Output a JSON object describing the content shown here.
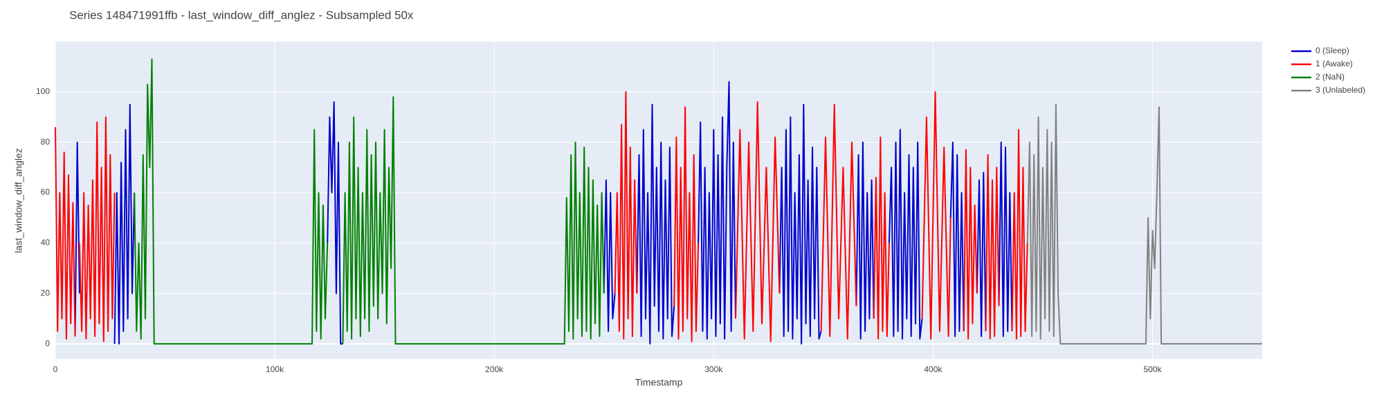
{
  "chart_data": {
    "type": "line",
    "title": "Series 148471991ffb - last_window_diff_anglez - Subsampled 50x",
    "x_label": "Timestamp",
    "y_label": "last_window_diff_anglez",
    "xlim": [
      0,
      550000
    ],
    "ylim": [
      -6,
      120
    ],
    "xticks": [
      0,
      {
        "value": 100000,
        "label": "100k"
      },
      {
        "value": 200000,
        "label": "200k"
      },
      {
        "value": 300000,
        "label": "300k"
      },
      {
        "value": 400000,
        "label": "400k"
      },
      {
        "value": 500000,
        "label": "500k"
      }
    ],
    "yticks": [
      0,
      20,
      40,
      60,
      80,
      100
    ],
    "grid": true,
    "legend": "right",
    "series": [
      {
        "name": "0 (Sleep)",
        "color": "#0000cc",
        "x": [
          9000,
          10000,
          11000,
          null,
          27000,
          28000,
          29000,
          30000,
          31000,
          32000,
          33000,
          34000,
          35000,
          36000,
          null,
          124000,
          125000,
          126000,
          127000,
          128000,
          129000,
          130000,
          131000,
          null,
          250000,
          251000,
          252000,
          253000,
          254000,
          255000,
          null,
          265000,
          266000,
          267000,
          268000,
          269000,
          270000,
          271000,
          272000,
          273000,
          274000,
          275000,
          276000,
          277000,
          278000,
          279000,
          280000,
          281000,
          282000,
          null,
          293000,
          294000,
          295000,
          296000,
          297000,
          298000,
          299000,
          300000,
          301000,
          302000,
          303000,
          304000,
          305000,
          306000,
          307000,
          308000,
          309000,
          310000,
          null,
          330000,
          331000,
          332000,
          333000,
          334000,
          335000,
          336000,
          337000,
          338000,
          339000,
          340000,
          341000,
          342000,
          343000,
          344000,
          345000,
          346000,
          347000,
          348000,
          349000,
          null,
          365000,
          366000,
          367000,
          368000,
          369000,
          370000,
          371000,
          372000,
          373000,
          null,
          380000,
          381000,
          382000,
          383000,
          384000,
          385000,
          386000,
          387000,
          388000,
          389000,
          390000,
          391000,
          392000,
          393000,
          394000,
          395000,
          null,
          408000,
          409000,
          410000,
          411000,
          412000,
          413000,
          414000,
          null,
          420000,
          421000,
          422000,
          423000,
          424000,
          null,
          430000,
          431000,
          432000,
          433000,
          434000,
          435000,
          436000
        ],
        "values": [
          3,
          80,
          20,
          null,
          0,
          60,
          0,
          72,
          5,
          85,
          10,
          95,
          20,
          60,
          null,
          40,
          90,
          60,
          96,
          20,
          80,
          0,
          0,
          null,
          20,
          65,
          5,
          60,
          10,
          20,
          null,
          20,
          75,
          3,
          85,
          10,
          60,
          0,
          95,
          15,
          70,
          5,
          80,
          2,
          65,
          10,
          78,
          3,
          15,
          null,
          40,
          88,
          5,
          70,
          2,
          60,
          10,
          85,
          3,
          75,
          8,
          90,
          2,
          70,
          104,
          5,
          80,
          10,
          null,
          20,
          70,
          3,
          85,
          5,
          90,
          2,
          60,
          10,
          75,
          0,
          95,
          8,
          65,
          3,
          78,
          10,
          70,
          2,
          5,
          null,
          15,
          75,
          2,
          80,
          5,
          60,
          10,
          65,
          10,
          null,
          40,
          70,
          3,
          80,
          5,
          85,
          2,
          60,
          10,
          75,
          3,
          70,
          8,
          80,
          2,
          10,
          null,
          50,
          80,
          3,
          75,
          5,
          60,
          5,
          null,
          20,
          65,
          3,
          68,
          5,
          null,
          15,
          80,
          3,
          78,
          5,
          60,
          5
        ]
      },
      {
        "name": "1 (Awake)",
        "color": "#ff0000",
        "x": [
          0,
          1000,
          2000,
          3000,
          4000,
          5000,
          6000,
          7000,
          8000,
          9000,
          null,
          11000,
          12000,
          13000,
          14000,
          15000,
          16000,
          17000,
          18000,
          19000,
          20000,
          21000,
          22000,
          23000,
          24000,
          25000,
          26000,
          27000,
          null,
          255000,
          256000,
          257000,
          258000,
          259000,
          260000,
          261000,
          262000,
          263000,
          264000,
          265000,
          null,
          282000,
          283000,
          284000,
          285000,
          286000,
          287000,
          288000,
          289000,
          290000,
          291000,
          292000,
          293000,
          null,
          310000,
          312000,
          314000,
          316000,
          318000,
          320000,
          322000,
          324000,
          326000,
          328000,
          330000,
          null,
          349000,
          351000,
          353000,
          355000,
          357000,
          359000,
          361000,
          363000,
          365000,
          null,
          373000,
          374000,
          375000,
          376000,
          377000,
          378000,
          379000,
          380000,
          null,
          395000,
          397000,
          399000,
          401000,
          403000,
          405000,
          407000,
          408000,
          null,
          414000,
          415000,
          416000,
          417000,
          418000,
          419000,
          420000,
          null,
          424000,
          425000,
          426000,
          427000,
          428000,
          429000,
          430000,
          null,
          436000,
          437000,
          438000,
          439000,
          440000,
          441000,
          442000,
          443000
        ],
        "values": [
          86,
          5,
          60,
          10,
          76,
          2,
          67,
          8,
          56,
          3,
          null,
          40,
          5,
          60,
          2,
          55,
          10,
          65,
          3,
          88,
          8,
          70,
          1,
          90,
          5,
          75,
          10,
          60,
          null,
          20,
          60,
          5,
          87,
          2,
          100,
          10,
          78,
          3,
          65,
          20,
          null,
          15,
          82,
          2,
          70,
          5,
          94,
          10,
          60,
          1,
          75,
          5,
          40,
          null,
          10,
          85,
          2,
          80,
          5,
          96,
          8,
          70,
          1,
          82,
          20,
          null,
          5,
          82,
          3,
          95,
          10,
          70,
          2,
          80,
          15,
          null,
          10,
          66,
          2,
          82,
          5,
          60,
          3,
          40,
          null,
          10,
          90,
          2,
          100,
          5,
          78,
          3,
          50,
          null,
          5,
          77,
          2,
          70,
          8,
          55,
          20,
          null,
          5,
          75,
          2,
          65,
          3,
          70,
          15,
          null,
          5,
          60,
          2,
          85,
          3,
          70,
          5,
          40
        ]
      },
      {
        "name": "2 (NaN)",
        "color": "#008000",
        "x": [
          36000,
          37000,
          38000,
          39000,
          40000,
          41000,
          42000,
          43000,
          44000,
          45000,
          117000,
          118000,
          119000,
          120000,
          121000,
          122000,
          123000,
          124000,
          null,
          131000,
          132000,
          133000,
          134000,
          135000,
          136000,
          137000,
          138000,
          139000,
          140000,
          141000,
          142000,
          143000,
          144000,
          145000,
          146000,
          147000,
          148000,
          149000,
          150000,
          151000,
          152000,
          153000,
          154000,
          155000,
          232000,
          233000,
          234000,
          235000,
          236000,
          237000,
          238000,
          239000,
          240000,
          241000,
          242000,
          243000,
          244000,
          245000,
          246000,
          247000,
          248000,
          249000,
          250000
        ],
        "values": [
          60,
          5,
          40,
          2,
          75,
          10,
          103,
          70,
          113,
          0,
          0,
          85,
          5,
          60,
          2,
          55,
          10,
          40,
          null,
          0,
          60,
          5,
          80,
          2,
          90,
          10,
          70,
          3,
          60,
          10,
          85,
          5,
          75,
          15,
          80,
          10,
          60,
          20,
          85,
          8,
          70,
          30,
          98,
          0,
          0,
          58,
          5,
          75,
          2,
          80,
          10,
          60,
          3,
          78,
          5,
          70,
          2,
          65,
          8,
          55,
          3,
          60,
          20
        ]
      },
      {
        "name": "3 (Unlabeled)",
        "color": "#808080",
        "x": [
          443000,
          444000,
          445000,
          446000,
          447000,
          448000,
          449000,
          450000,
          451000,
          452000,
          453000,
          454000,
          455000,
          456000,
          457000,
          458000,
          497000,
          498000,
          499000,
          500000,
          501000,
          502000,
          503000,
          504000,
          550000
        ],
        "values": [
          40,
          80,
          3,
          75,
          5,
          90,
          2,
          70,
          10,
          85,
          5,
          80,
          3,
          95,
          20,
          0,
          0,
          50,
          10,
          45,
          30,
          60,
          94,
          0,
          0
        ]
      }
    ]
  }
}
